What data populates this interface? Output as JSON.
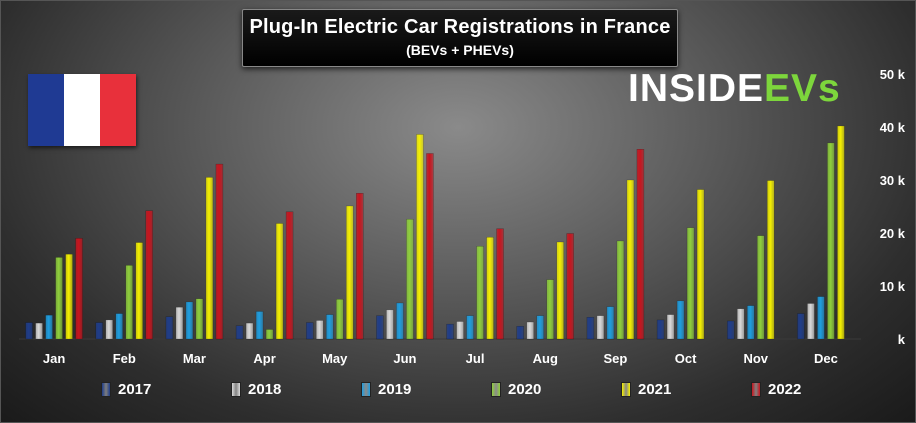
{
  "header": {
    "title": "Plug-In Electric Car Registrations in France",
    "subtitle": "(BEVs + PHEVs)"
  },
  "brand": {
    "main": "INSIDE",
    "accent": "EVs"
  },
  "flag": {
    "colors": [
      "#1f3a93",
      "#ffffff",
      "#e8303b"
    ]
  },
  "chart_data": {
    "type": "bar",
    "title": "Plug-In Electric Car Registrations in France",
    "subtitle": "(BEVs + PHEVs)",
    "categories": [
      "Jan",
      "Feb",
      "Mar",
      "Apr",
      "May",
      "Jun",
      "Jul",
      "Aug",
      "Sep",
      "Oct",
      "Nov",
      "Dec"
    ],
    "yticks": [
      "k",
      "10 k",
      "20 k",
      "30 k",
      "40 k",
      "50 k"
    ],
    "ylim": [
      0,
      50000
    ],
    "grid": false,
    "legend_position": "bottom",
    "series": [
      {
        "name": "2017",
        "color": "#1f3d8a",
        "values": [
          3100,
          3100,
          4200,
          2500,
          3100,
          4400,
          2800,
          2400,
          4100,
          3600,
          3400,
          4800
        ]
      },
      {
        "name": "2018",
        "color": "#d9d9d9",
        "values": [
          3000,
          3600,
          6000,
          3000,
          3500,
          5500,
          3300,
          3200,
          4400,
          4600,
          5700,
          6700
        ]
      },
      {
        "name": "2019",
        "color": "#1f9ee0",
        "values": [
          4500,
          4800,
          7000,
          5200,
          4600,
          6800,
          4400,
          4400,
          6100,
          7200,
          6300,
          8000
        ]
      },
      {
        "name": "2020",
        "color": "#8fcf3c",
        "values": [
          15400,
          13900,
          7600,
          1800,
          7500,
          22600,
          17500,
          11200,
          18500,
          21000,
          19500,
          37000
        ]
      },
      {
        "name": "2021",
        "color": "#f5f000",
        "values": [
          16000,
          18200,
          30500,
          21800,
          25100,
          38600,
          19200,
          18300,
          30000,
          28200,
          29900,
          40200
        ]
      },
      {
        "name": "2022",
        "color": "#c8141e",
        "values": [
          19000,
          24200,
          33000,
          24000,
          27500,
          35000,
          20800,
          19900,
          35800,
          null,
          null,
          null
        ]
      }
    ]
  }
}
